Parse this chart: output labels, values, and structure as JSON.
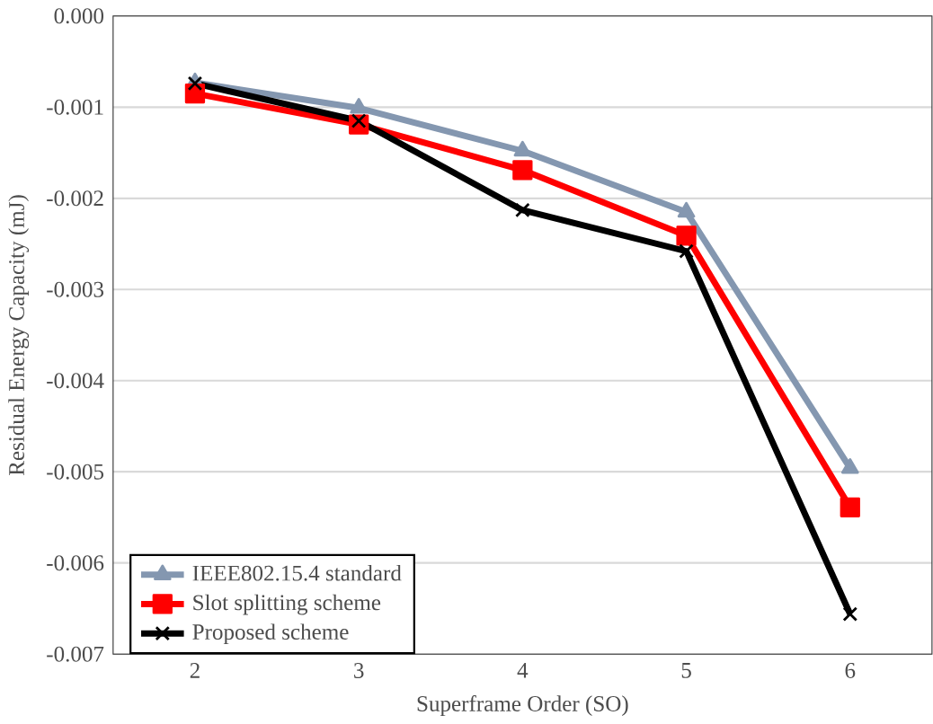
{
  "chart_data": {
    "type": "line",
    "xlabel": "Superframe  Order (SO)",
    "ylabel": "Residual Energy Capacity (mJ)",
    "categories": [
      "2",
      "3",
      "4",
      "5",
      "6"
    ],
    "series": [
      {
        "name": "IEEE802.15.4 standard",
        "color": "#8497b0",
        "marker": "triangle",
        "values": [
          -0.00073,
          -0.00101,
          -0.00148,
          -0.00215,
          -0.00496
        ]
      },
      {
        "name": "Slot splitting scheme",
        "color": "#ff0000",
        "marker": "square",
        "values": [
          -0.00085,
          -0.00119,
          -0.00169,
          -0.00241,
          -0.00539
        ]
      },
      {
        "name": "Proposed scheme",
        "color": "#000000",
        "marker": "cross",
        "values": [
          -0.00074,
          -0.00115,
          -0.00213,
          -0.00258,
          -0.00656
        ]
      }
    ],
    "ylim": [
      -0.007,
      0
    ],
    "yticks": [
      {
        "value": 0,
        "label": "0.000"
      },
      {
        "value": -0.001,
        "label": "-0.001"
      },
      {
        "value": -0.002,
        "label": "-0.002"
      },
      {
        "value": -0.003,
        "label": "-0.003"
      },
      {
        "value": -0.004,
        "label": "-0.004"
      },
      {
        "value": -0.005,
        "label": "-0.005"
      },
      {
        "value": -0.006,
        "label": "-0.006"
      },
      {
        "value": -0.007,
        "label": "-0.007"
      }
    ],
    "grid": "y",
    "legend": "bottom left",
    "line_style": "solid"
  }
}
